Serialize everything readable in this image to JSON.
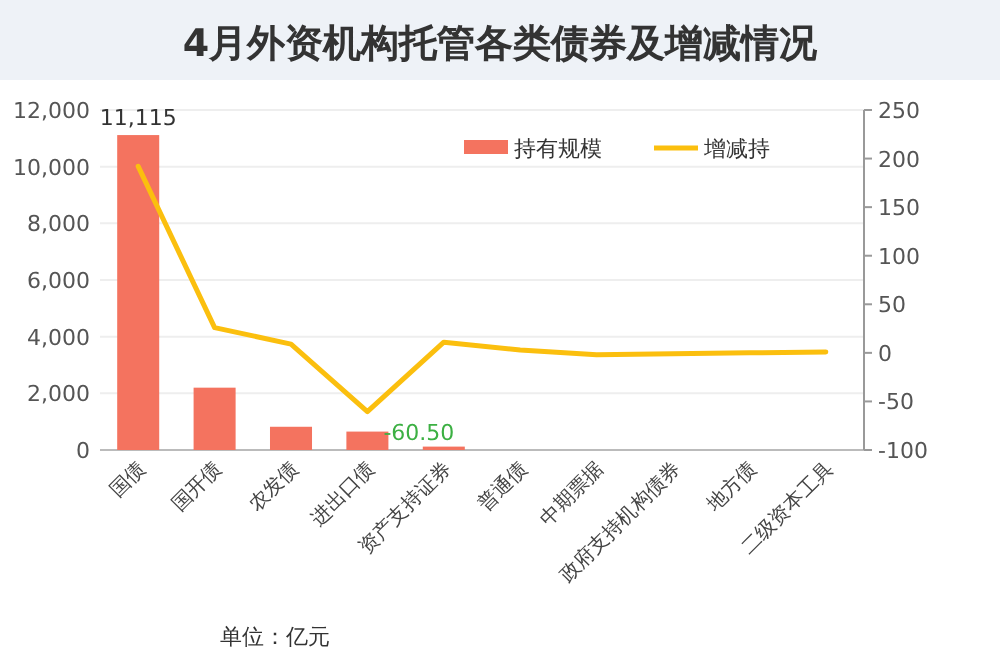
{
  "chart_data": {
    "type": "bar",
    "title": "4月外资机构托管各类债券及增减情况",
    "categories": [
      "国债",
      "国开债",
      "农发债",
      "进出口债",
      "资产支持证券",
      "普通债",
      "中期票据",
      "政府支持机构债券",
      "地方债",
      "二级资本工具"
    ],
    "series": [
      {
        "name": "持有规模",
        "color": "#f4735f",
        "values": [
          11115,
          2200,
          820,
          650,
          120,
          0,
          0,
          0,
          0,
          0
        ],
        "value_labels": [
          "11,115",
          null,
          null,
          null,
          null,
          null,
          null,
          null,
          null,
          null
        ]
      },
      {
        "name": "增减持",
        "type": "line",
        "axis": "y2",
        "color": "#fbbf0e",
        "values": [
          192,
          26,
          9,
          -60.5,
          11,
          3,
          -2,
          -1,
          0,
          1
        ],
        "value_labels": [
          null,
          null,
          null,
          "-60.50",
          null,
          null,
          null,
          null,
          null,
          null
        ]
      }
    ],
    "ylim": [
      0,
      12000
    ],
    "yticks": [
      {
        "value": 0,
        "label": "0"
      },
      {
        "value": 2000,
        "label": "2,000"
      },
      {
        "value": 4000,
        "label": "4,000"
      },
      {
        "value": 6000,
        "label": "6,000"
      },
      {
        "value": 8000,
        "label": "8,000"
      },
      {
        "value": 10000,
        "label": "10,000"
      },
      {
        "value": 12000,
        "label": "12,000"
      }
    ],
    "y2lim": [
      -100,
      250
    ],
    "y2ticks": [
      -100,
      -50,
      0,
      50,
      100,
      150,
      200,
      250
    ],
    "grid": "y",
    "legend": "top right",
    "annotations": [
      "单位：亿元"
    ]
  }
}
